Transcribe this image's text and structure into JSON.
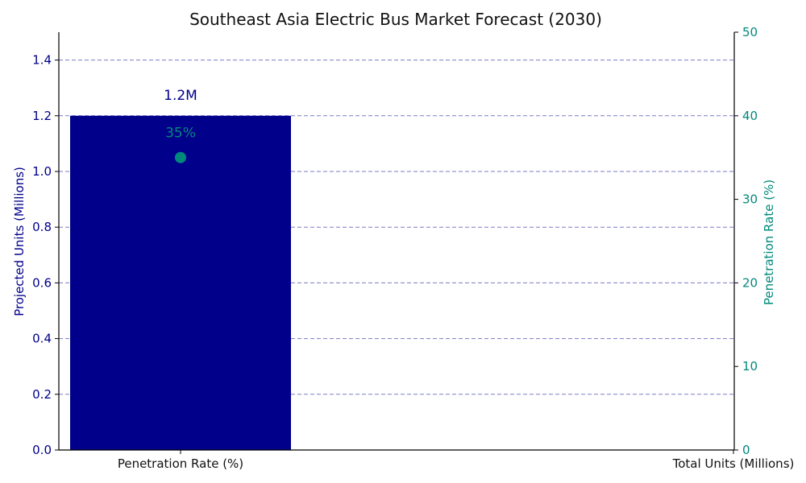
{
  "chart_data": {
    "type": "bar",
    "title": "Southeast Asia Electric Bus Market Forecast (2030)",
    "categories": [
      "Penetration Rate (%)",
      "Total Units (Millions)"
    ],
    "series": [
      {
        "name": "",
        "type": "bar",
        "axis": "left",
        "values": [
          1.2,
          null
        ],
        "data_labels": [
          "1.2M",
          ""
        ],
        "color": "#00008b"
      },
      {
        "name": "",
        "type": "scatter",
        "axis": "right",
        "values": [
          35,
          null
        ],
        "data_labels": [
          "35%",
          ""
        ],
        "color": "#00897b"
      }
    ],
    "y_left": {
      "label": "Projected Units (Millions)",
      "lim": [
        0,
        1.5
      ],
      "ticks": [
        "0.0",
        "0.2",
        "0.4",
        "0.6",
        "0.8",
        "1.0",
        "1.2",
        "1.4"
      ],
      "color": "#00008b"
    },
    "y_right": {
      "label": "Penetration Rate (%)",
      "lim": [
        0,
        50
      ],
      "ticks": [
        "0",
        "10",
        "20",
        "30",
        "40",
        "50"
      ],
      "color": "#00897b"
    },
    "grid": "horizontal dashed",
    "grid_color": "#7b7bc8",
    "legend": "none"
  }
}
